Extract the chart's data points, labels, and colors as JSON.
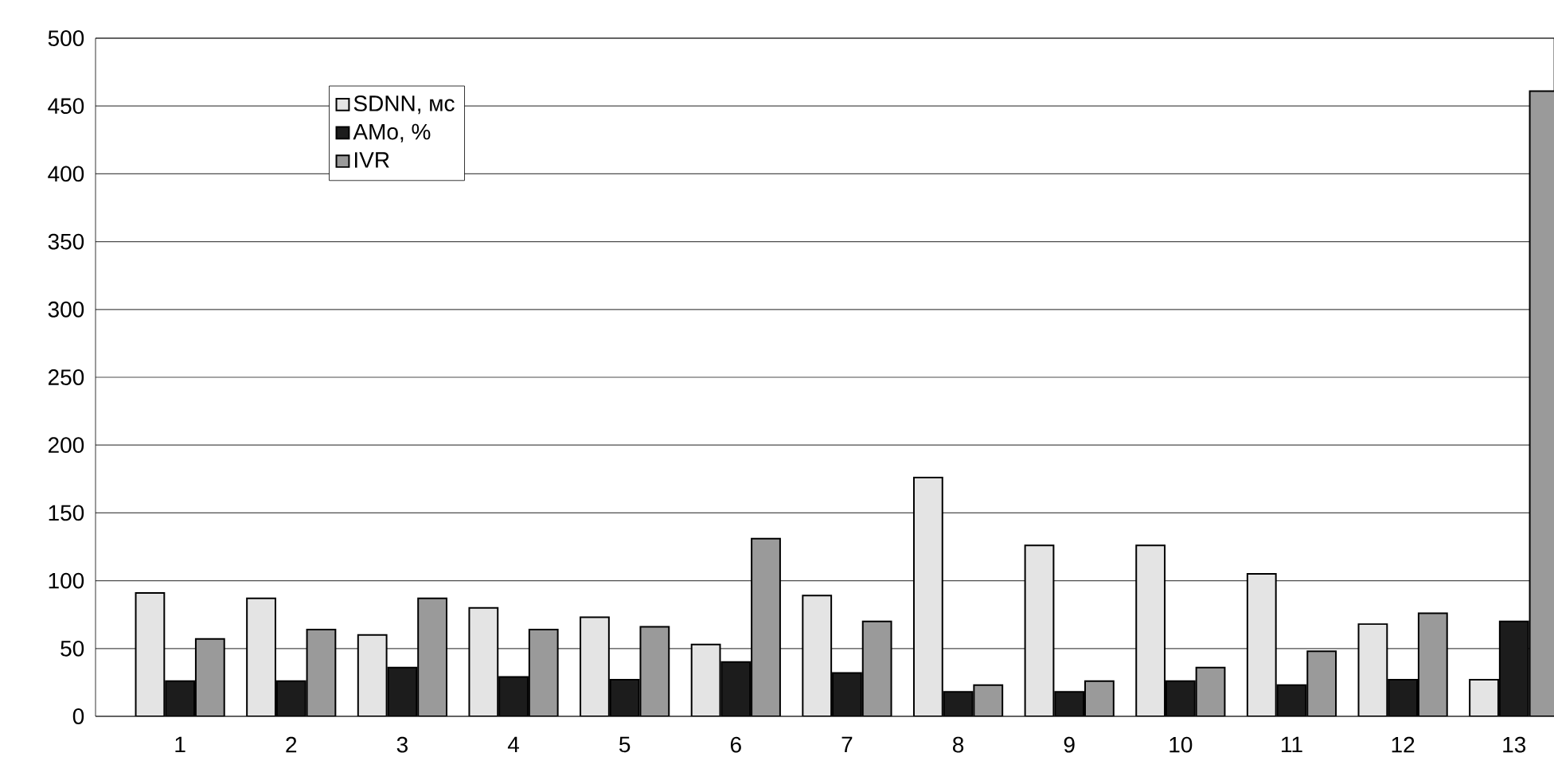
{
  "chart_data": {
    "type": "bar",
    "categories": [
      "1",
      "2",
      "3",
      "4",
      "5",
      "6",
      "7",
      "8",
      "9",
      "10",
      "11",
      "12",
      "13"
    ],
    "series": [
      {
        "name": "SDNN, мс",
        "color": "#e4e4e4",
        "values": [
          91,
          87,
          60,
          80,
          73,
          53,
          89,
          176,
          126,
          126,
          105,
          68,
          27
        ]
      },
      {
        "name": "AMo, %",
        "color": "#1c1c1c",
        "values": [
          26,
          26,
          36,
          29,
          27,
          40,
          32,
          18,
          18,
          26,
          23,
          27,
          70
        ]
      },
      {
        "name": "IVR",
        "color": "#9a9a9a",
        "values": [
          57,
          64,
          87,
          64,
          66,
          131,
          70,
          23,
          26,
          36,
          48,
          76,
          461
        ]
      }
    ],
    "ylim": [
      0,
      500
    ],
    "yticks": [
      0,
      50,
      100,
      150,
      200,
      250,
      300,
      350,
      400,
      450,
      500
    ],
    "grid": "y",
    "legend": "top left"
  }
}
